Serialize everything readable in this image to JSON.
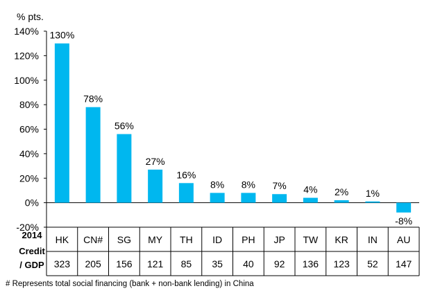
{
  "chart_data": {
    "type": "bar",
    "ylabel": "% pts.",
    "ylim": [
      -20,
      140
    ],
    "yticks": [
      140,
      120,
      100,
      80,
      60,
      40,
      20,
      0,
      -20
    ],
    "tick_suffix": "%",
    "grid": false,
    "bar_color": "#00B7EF",
    "categories": [
      "HK",
      "CN#",
      "SG",
      "MY",
      "TH",
      "ID",
      "PH",
      "JP",
      "TW",
      "KR",
      "IN",
      "AU"
    ],
    "values": [
      130,
      78,
      56,
      27,
      16,
      8,
      8,
      7,
      4,
      2,
      1,
      -8
    ],
    "data_labels": [
      "130%",
      "78%",
      "56%",
      "27%",
      "16%",
      "8%",
      "8%",
      "7%",
      "4%",
      "2%",
      "1%",
      "-8%"
    ],
    "table": {
      "row_label": [
        "2014",
        "Credit",
        "/ GDP"
      ],
      "values": [
        "323",
        "205",
        "156",
        "121",
        "85",
        "35",
        "40",
        "92",
        "136",
        "123",
        "52",
        "147"
      ]
    }
  },
  "footnote": "# Represents total social financing (bank + non-bank lending) in China"
}
